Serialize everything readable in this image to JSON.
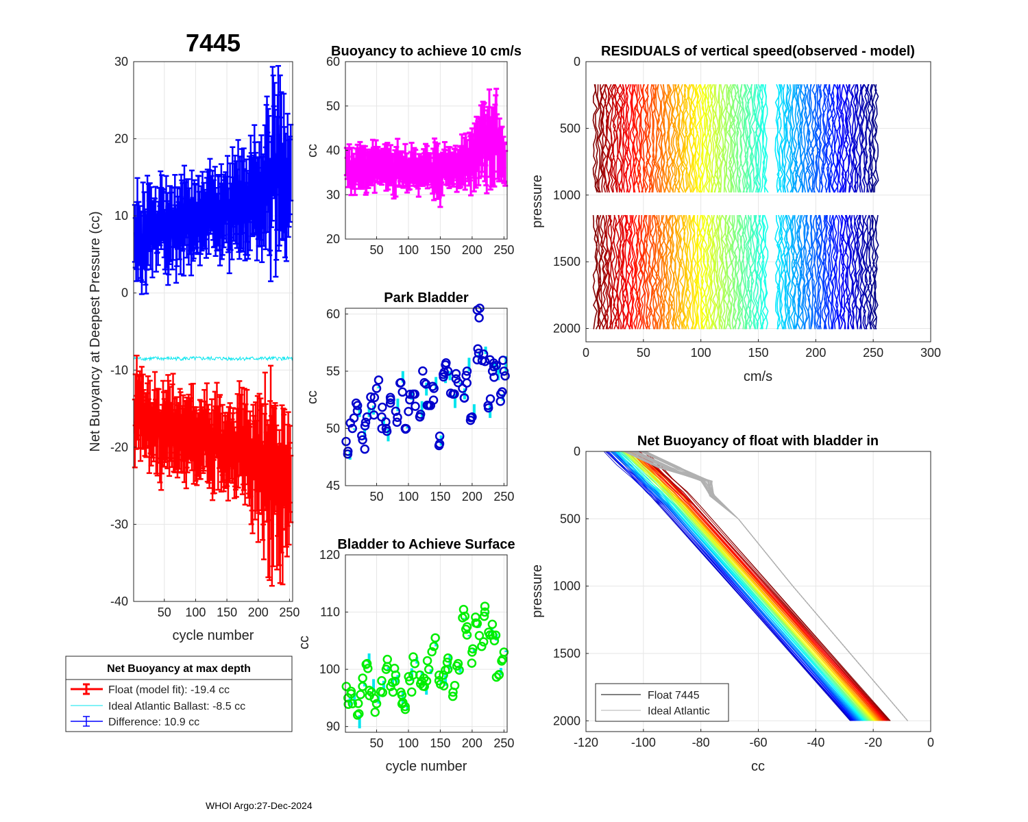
{
  "figure": {
    "float_id": "7445",
    "footer": "WHOI Argo:27-Dec-2024"
  },
  "legend_left": {
    "title": "Net Buoyancy at max depth",
    "entries": [
      {
        "label": "Float (model fit): -19.4 cc",
        "color": "#ff0000"
      },
      {
        "label": "Ideal Atlantic Ballast:  -8.5 cc",
        "color": "#00e5ee"
      },
      {
        "label": "Difference:  10.9 cc",
        "color": "#0000ff"
      }
    ]
  },
  "legend_bottom_right": {
    "entries": [
      {
        "label": "Float 7445",
        "color": "#000000"
      },
      {
        "label": "Ideal Atlantic",
        "color": "#b0b0b0"
      }
    ]
  },
  "chart_data": [
    {
      "id": "net_buoyancy",
      "type": "errorbar",
      "title": "7445",
      "xlabel": "cycle number",
      "ylabel": "Net Buoyancy at Deepest Pressure (cc)",
      "xlim": [
        1,
        255
      ],
      "ylim": [
        -40,
        30
      ],
      "xticks": [
        50,
        100,
        150,
        200,
        250
      ],
      "yticks": [
        -40,
        -30,
        -20,
        -10,
        0,
        10,
        20,
        30
      ],
      "series": [
        {
          "name": "Difference",
          "color": "#0000ff",
          "x": [
            5,
            15,
            25,
            35,
            45,
            55,
            65,
            75,
            85,
            95,
            105,
            115,
            125,
            135,
            145,
            155,
            165,
            175,
            185,
            195,
            205,
            215,
            225,
            235,
            245,
            252
          ],
          "y": [
            7,
            6.5,
            7.5,
            8,
            9,
            8.5,
            9.5,
            8,
            10,
            9,
            10.5,
            9.5,
            11,
            10,
            11.5,
            10,
            12,
            11,
            12,
            13,
            12.5,
            14,
            15,
            16,
            14,
            13
          ],
          "err": [
            4,
            4,
            4,
            3.5,
            3.5,
            4,
            3.5,
            4,
            3.5,
            4,
            3.5,
            4,
            3.5,
            4,
            4,
            4,
            4,
            4.5,
            4.5,
            5,
            5,
            6,
            7,
            6.5,
            6,
            5
          ]
        },
        {
          "name": "Ideal Atlantic Ballast",
          "color": "#00e5ee",
          "x": [
            1,
            255
          ],
          "y": [
            -8.5,
            -8.5
          ]
        },
        {
          "name": "Float (model fit)",
          "color": "#ff0000",
          "x": [
            5,
            15,
            25,
            35,
            45,
            55,
            65,
            75,
            85,
            95,
            105,
            115,
            125,
            135,
            145,
            155,
            165,
            175,
            185,
            195,
            205,
            215,
            225,
            235,
            245,
            252
          ],
          "y": [
            -15,
            -16,
            -16.5,
            -17,
            -17.5,
            -17,
            -18,
            -18.5,
            -17.5,
            -18.5,
            -19,
            -18,
            -19.5,
            -19,
            -20,
            -19,
            -20.5,
            -19.5,
            -21,
            -21,
            -22,
            -23,
            -25,
            -26,
            -24,
            -22
          ],
          "err": [
            4,
            4,
            4,
            4,
            4,
            4,
            4,
            4,
            4,
            4,
            4,
            4,
            4,
            4,
            4,
            4,
            4,
            4.5,
            4.5,
            5,
            6,
            7,
            7.5,
            7,
            6,
            5
          ]
        }
      ]
    },
    {
      "id": "buoyancy_10cms",
      "type": "errorbar",
      "title": "Buoyancy to achieve 10 cm/s",
      "xlabel": "",
      "ylabel": "cc",
      "xlim": [
        1,
        255
      ],
      "ylim": [
        20,
        60
      ],
      "xticks": [
        50,
        100,
        150,
        200,
        250
      ],
      "yticks": [
        20,
        30,
        40,
        50,
        60
      ],
      "series": [
        {
          "name": "Buoyancy",
          "color": "#ff00ff",
          "x": [
            5,
            15,
            25,
            35,
            45,
            55,
            65,
            75,
            85,
            95,
            105,
            115,
            125,
            135,
            145,
            155,
            165,
            175,
            185,
            195,
            205,
            215,
            225,
            235,
            245,
            252
          ],
          "y": [
            36,
            35,
            36,
            35.5,
            37,
            35,
            36,
            35,
            36.5,
            35.5,
            36,
            35,
            37,
            36,
            34,
            36,
            37,
            36,
            37.5,
            38,
            40,
            41,
            42,
            43,
            40,
            38
          ],
          "err": [
            3,
            3,
            3.5,
            3,
            3.5,
            3,
            3.5,
            3.5,
            3,
            3,
            3,
            3,
            3,
            3,
            6,
            3,
            3,
            3,
            3.5,
            4,
            5,
            5.5,
            6,
            7,
            5,
            4
          ]
        }
      ]
    },
    {
      "id": "park_bladder",
      "type": "scatter",
      "title": "Park Bladder",
      "xlabel": "",
      "ylabel": "cc",
      "xlim": [
        1,
        255
      ],
      "ylim": [
        45,
        60.5
      ],
      "xticks": [
        50,
        100,
        150,
        200,
        250
      ],
      "yticks": [
        45,
        50,
        55,
        60
      ],
      "series": [
        {
          "name": "Park Bladder",
          "color": "#0000cc",
          "linecolor": "#00e5ee",
          "x": [
            5,
            12,
            20,
            28,
            35,
            42,
            50,
            58,
            65,
            72,
            80,
            88,
            95,
            102,
            110,
            118,
            125,
            132,
            140,
            148,
            155,
            162,
            170,
            178,
            185,
            192,
            200,
            208,
            212,
            218,
            225,
            232,
            238,
            245,
            250
          ],
          "y": [
            48,
            50,
            52,
            49,
            51,
            52,
            53.5,
            51,
            50,
            52.5,
            51.5,
            54,
            50,
            52.5,
            53,
            51,
            54,
            52,
            53.5,
            48.5,
            54.5,
            55,
            53,
            54,
            53.5,
            55,
            51,
            56,
            60.5,
            56.5,
            52,
            55,
            55.5,
            53,
            55
          ]
        }
      ]
    },
    {
      "id": "bladder_surface",
      "type": "scatter",
      "title": "Bladder to Achieve Surface",
      "xlabel": "cycle number",
      "ylabel": "cc",
      "xlim": [
        1,
        255
      ],
      "ylim": [
        89,
        120
      ],
      "xticks": [
        50,
        100,
        150,
        200,
        250
      ],
      "yticks": [
        90,
        100,
        110,
        120
      ],
      "series": [
        {
          "name": "Bladder",
          "color": "#00ee00",
          "linecolor": "#00e5ee",
          "x": [
            5,
            12,
            20,
            28,
            35,
            42,
            50,
            58,
            65,
            72,
            80,
            88,
            95,
            102,
            110,
            118,
            125,
            132,
            140,
            148,
            155,
            162,
            170,
            178,
            185,
            192,
            200,
            208,
            215,
            220,
            228,
            235,
            242,
            250
          ],
          "y": [
            95,
            94,
            92,
            97,
            101,
            96,
            94,
            98,
            100,
            97,
            99,
            96,
            93,
            98,
            101,
            99,
            97,
            100,
            104,
            98,
            99,
            100,
            96,
            101,
            109,
            106,
            103,
            108,
            104,
            110,
            106,
            105,
            99,
            103
          ]
        }
      ]
    },
    {
      "id": "residuals",
      "type": "line",
      "title": "RESIDUALS of vertical speed(observed - model)",
      "xlabel": "cm/s",
      "ylabel": "pressure",
      "xlim": [
        0,
        300
      ],
      "ylim": [
        2100,
        0
      ],
      "xticks": [
        0,
        50,
        100,
        150,
        200,
        250,
        300
      ],
      "yticks": [
        0,
        500,
        1000,
        1500,
        2000
      ],
      "segments": [
        [
          170,
          1020
        ],
        [
          1150,
          2010
        ]
      ],
      "cycles_range": [
        8,
        253
      ]
    },
    {
      "id": "net_buoyancy_bladder",
      "type": "line",
      "title": "Net Buoyancy of float with bladder in",
      "xlabel": "cc",
      "ylabel": "pressure",
      "xlim": [
        -120,
        0
      ],
      "ylim": [
        2080,
        0
      ],
      "xticks": [
        -120,
        -100,
        -80,
        -60,
        -40,
        -20,
        0
      ],
      "yticks": [
        0,
        500,
        1000,
        1500,
        2000
      ],
      "profiles": {
        "pressure": [
          0,
          100,
          200,
          300,
          400,
          500,
          1000,
          1500,
          2000
        ],
        "float_range_start": [
          -113,
          -100
        ],
        "float_range_end": [
          -28,
          -14
        ],
        "ideal_end": -8
      }
    }
  ]
}
